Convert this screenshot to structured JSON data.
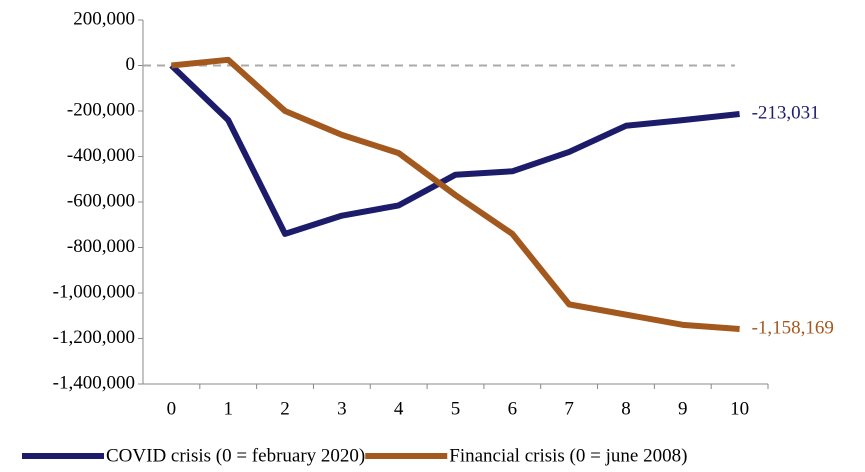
{
  "chart_data": {
    "type": "line",
    "categories": [
      "0",
      "1",
      "2",
      "3",
      "4",
      "5",
      "6",
      "7",
      "8",
      "9",
      "10"
    ],
    "series": [
      {
        "name": "COVID crisis (0 = february 2020)",
        "color": "#1c1c6b",
        "values": [
          0,
          -240000,
          -740000,
          -660000,
          -615000,
          -480000,
          -465000,
          -380000,
          -265000,
          -240000,
          -213031
        ],
        "value_labels": [
          null,
          null,
          null,
          null,
          null,
          null,
          null,
          null,
          null,
          null,
          "-213,031"
        ]
      },
      {
        "name": "Financial crisis (0 = june 2008)",
        "color": "#a3581e",
        "values": [
          0,
          25000,
          -200000,
          -305000,
          -385000,
          -570000,
          -740000,
          -1050000,
          -1095000,
          -1140000,
          -1158169
        ],
        "value_labels": [
          null,
          null,
          null,
          null,
          null,
          null,
          null,
          null,
          null,
          null,
          "-1,158,169"
        ]
      }
    ],
    "ylim": [
      -1400000,
      200000
    ],
    "yticks": [
      {
        "value": -1400000,
        "label": "-1,400,000"
      },
      {
        "value": -1200000,
        "label": "-1,200,000"
      },
      {
        "value": -1000000,
        "label": "-1,000,000"
      },
      {
        "value": -800000,
        "label": "-800,000"
      },
      {
        "value": -600000,
        "label": "-600,000"
      },
      {
        "value": -400000,
        "label": "-400,000"
      },
      {
        "value": -200000,
        "label": "-200,000"
      },
      0,
      {
        "value": 200000,
        "label": "200,000"
      }
    ],
    "legend": "bottom"
  }
}
